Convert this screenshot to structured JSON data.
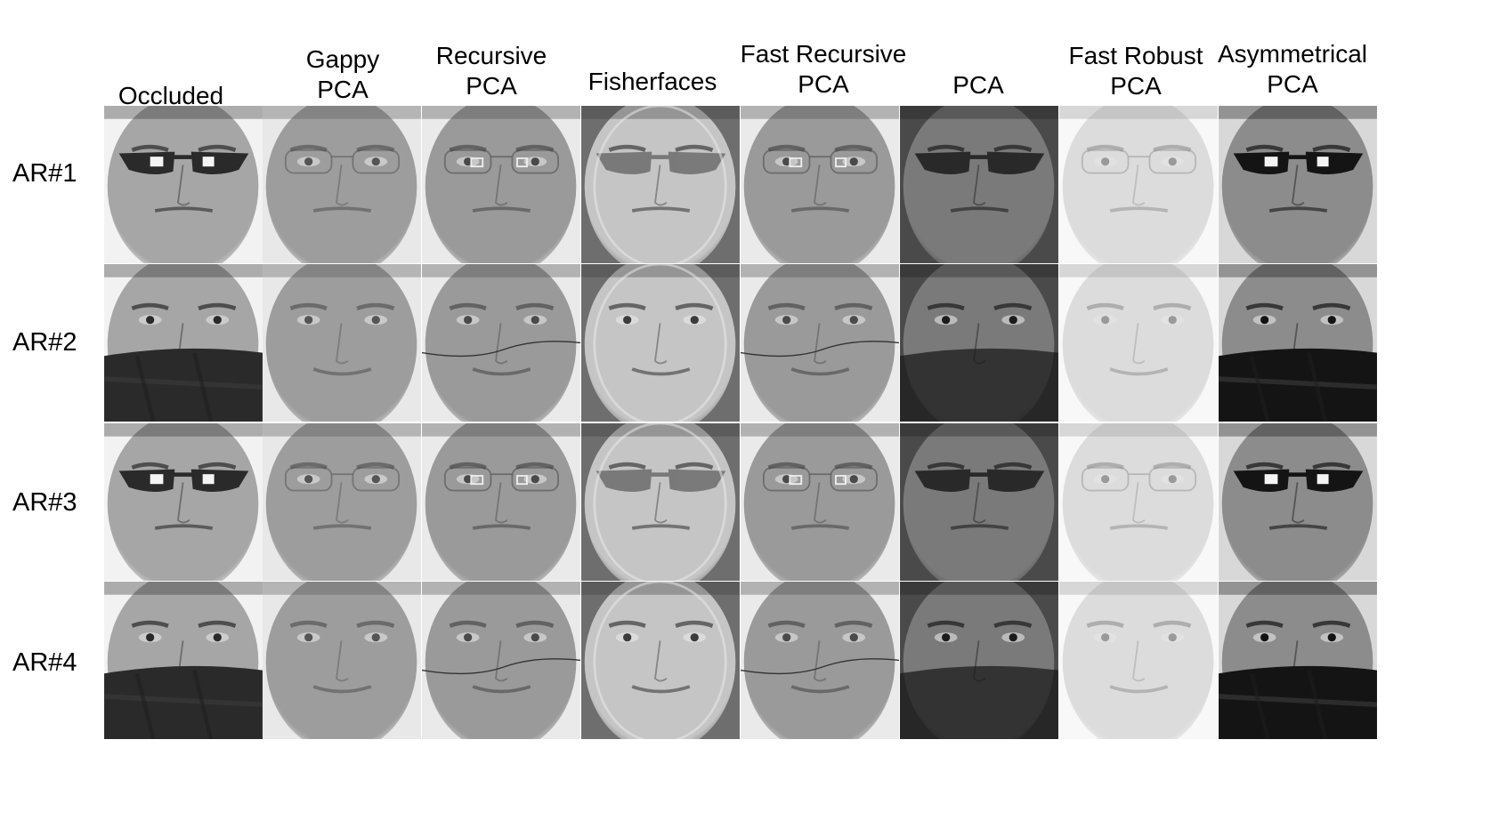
{
  "columns": [
    {
      "id": "occluded",
      "label": "Occluded"
    },
    {
      "id": "gappy-pca",
      "label": "Gappy\nPCA"
    },
    {
      "id": "recursive-pca",
      "label": "Recursive\nPCA"
    },
    {
      "id": "fisherfaces",
      "label": "Fisherfaces"
    },
    {
      "id": "fast-recursive-pca",
      "label": "Fast Recursive\nPCA"
    },
    {
      "id": "pca",
      "label": "PCA"
    },
    {
      "id": "fast-robust-pca",
      "label": "Fast Robust\nPCA"
    },
    {
      "id": "asymmetrical-pca",
      "label": "Asymmetrical\nPCA"
    }
  ],
  "rows": [
    {
      "id": "ar1",
      "label": "AR#1",
      "occlusion": "sunglasses"
    },
    {
      "id": "ar2",
      "label": "AR#2",
      "occlusion": "scarf"
    },
    {
      "id": "ar3",
      "label": "AR#3",
      "occlusion": "sunglasses"
    },
    {
      "id": "ar4",
      "label": "AR#4",
      "occlusion": "scarf"
    }
  ],
  "cell_styles": {
    "occluded": {
      "skin": "#a6a6a6",
      "bg": "#f2f2f2",
      "dark": "#2a2a2a",
      "mode": "occluded"
    },
    "gappy-pca": {
      "skin": "#9d9d9d",
      "bg": "#e8e8e8",
      "dark": "#555555",
      "mode": "reconstructed"
    },
    "recursive-pca": {
      "skin": "#9a9a9a",
      "bg": "#eaeaea",
      "dark": "#4a4a4a",
      "mode": "reconstructed-line"
    },
    "fisherfaces": {
      "skin": "#bdbdbd",
      "bg": "#5a5a5a",
      "dark": "#222222",
      "mode": "ghost"
    },
    "fast-recursive-pca": {
      "skin": "#9a9a9a",
      "bg": "#eaeaea",
      "dark": "#4a4a4a",
      "mode": "reconstructed-line"
    },
    "pca": {
      "skin": "#7a7a7a",
      "bg": "#4a4a4a",
      "dark": "#1c1c1c",
      "mode": "dark"
    },
    "fast-robust-pca": {
      "skin": "#dcdcdc",
      "bg": "#f8f8f8",
      "dark": "#9a9a9a",
      "mode": "light"
    },
    "asymmetrical-pca": {
      "skin": "#8c8c8c",
      "bg": "#d8d8d8",
      "dark": "#141414",
      "mode": "occluded"
    }
  }
}
